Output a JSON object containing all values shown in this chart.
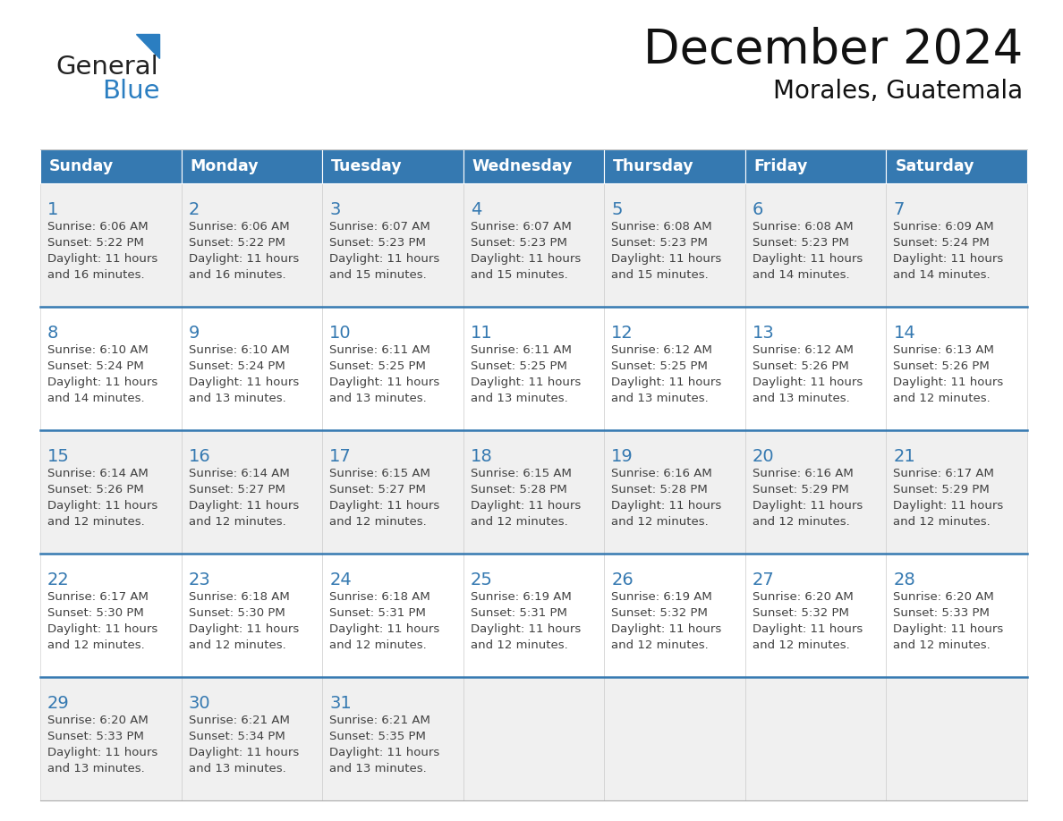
{
  "title": "December 2024",
  "subtitle": "Morales, Guatemala",
  "header_color": "#3579B1",
  "header_text_color": "#FFFFFF",
  "day_names": [
    "Sunday",
    "Monday",
    "Tuesday",
    "Wednesday",
    "Thursday",
    "Friday",
    "Saturday"
  ],
  "bg_color": "#FFFFFF",
  "cell_bg_even": "#F0F0F0",
  "cell_bg_odd": "#FFFFFF",
  "row_line_color": "#3579B1",
  "date_color": "#3579B1",
  "text_color": "#404040",
  "calendar": [
    [
      {
        "day": 1,
        "sunrise": "6:06 AM",
        "sunset": "5:22 PM",
        "daylight": "11 hours and 16 minutes"
      },
      {
        "day": 2,
        "sunrise": "6:06 AM",
        "sunset": "5:22 PM",
        "daylight": "11 hours and 16 minutes"
      },
      {
        "day": 3,
        "sunrise": "6:07 AM",
        "sunset": "5:23 PM",
        "daylight": "11 hours and 15 minutes"
      },
      {
        "day": 4,
        "sunrise": "6:07 AM",
        "sunset": "5:23 PM",
        "daylight": "11 hours and 15 minutes"
      },
      {
        "day": 5,
        "sunrise": "6:08 AM",
        "sunset": "5:23 PM",
        "daylight": "11 hours and 15 minutes"
      },
      {
        "day": 6,
        "sunrise": "6:08 AM",
        "sunset": "5:23 PM",
        "daylight": "11 hours and 14 minutes"
      },
      {
        "day": 7,
        "sunrise": "6:09 AM",
        "sunset": "5:24 PM",
        "daylight": "11 hours and 14 minutes"
      }
    ],
    [
      {
        "day": 8,
        "sunrise": "6:10 AM",
        "sunset": "5:24 PM",
        "daylight": "11 hours and 14 minutes"
      },
      {
        "day": 9,
        "sunrise": "6:10 AM",
        "sunset": "5:24 PM",
        "daylight": "11 hours and 13 minutes"
      },
      {
        "day": 10,
        "sunrise": "6:11 AM",
        "sunset": "5:25 PM",
        "daylight": "11 hours and 13 minutes"
      },
      {
        "day": 11,
        "sunrise": "6:11 AM",
        "sunset": "5:25 PM",
        "daylight": "11 hours and 13 minutes"
      },
      {
        "day": 12,
        "sunrise": "6:12 AM",
        "sunset": "5:25 PM",
        "daylight": "11 hours and 13 minutes"
      },
      {
        "day": 13,
        "sunrise": "6:12 AM",
        "sunset": "5:26 PM",
        "daylight": "11 hours and 13 minutes"
      },
      {
        "day": 14,
        "sunrise": "6:13 AM",
        "sunset": "5:26 PM",
        "daylight": "11 hours and 12 minutes"
      }
    ],
    [
      {
        "day": 15,
        "sunrise": "6:14 AM",
        "sunset": "5:26 PM",
        "daylight": "11 hours and 12 minutes"
      },
      {
        "day": 16,
        "sunrise": "6:14 AM",
        "sunset": "5:27 PM",
        "daylight": "11 hours and 12 minutes"
      },
      {
        "day": 17,
        "sunrise": "6:15 AM",
        "sunset": "5:27 PM",
        "daylight": "11 hours and 12 minutes"
      },
      {
        "day": 18,
        "sunrise": "6:15 AM",
        "sunset": "5:28 PM",
        "daylight": "11 hours and 12 minutes"
      },
      {
        "day": 19,
        "sunrise": "6:16 AM",
        "sunset": "5:28 PM",
        "daylight": "11 hours and 12 minutes"
      },
      {
        "day": 20,
        "sunrise": "6:16 AM",
        "sunset": "5:29 PM",
        "daylight": "11 hours and 12 minutes"
      },
      {
        "day": 21,
        "sunrise": "6:17 AM",
        "sunset": "5:29 PM",
        "daylight": "11 hours and 12 minutes"
      }
    ],
    [
      {
        "day": 22,
        "sunrise": "6:17 AM",
        "sunset": "5:30 PM",
        "daylight": "11 hours and 12 minutes"
      },
      {
        "day": 23,
        "sunrise": "6:18 AM",
        "sunset": "5:30 PM",
        "daylight": "11 hours and 12 minutes"
      },
      {
        "day": 24,
        "sunrise": "6:18 AM",
        "sunset": "5:31 PM",
        "daylight": "11 hours and 12 minutes"
      },
      {
        "day": 25,
        "sunrise": "6:19 AM",
        "sunset": "5:31 PM",
        "daylight": "11 hours and 12 minutes"
      },
      {
        "day": 26,
        "sunrise": "6:19 AM",
        "sunset": "5:32 PM",
        "daylight": "11 hours and 12 minutes"
      },
      {
        "day": 27,
        "sunrise": "6:20 AM",
        "sunset": "5:32 PM",
        "daylight": "11 hours and 12 minutes"
      },
      {
        "day": 28,
        "sunrise": "6:20 AM",
        "sunset": "5:33 PM",
        "daylight": "11 hours and 12 minutes"
      }
    ],
    [
      {
        "day": 29,
        "sunrise": "6:20 AM",
        "sunset": "5:33 PM",
        "daylight": "11 hours and 13 minutes"
      },
      {
        "day": 30,
        "sunrise": "6:21 AM",
        "sunset": "5:34 PM",
        "daylight": "11 hours and 13 minutes"
      },
      {
        "day": 31,
        "sunrise": "6:21 AM",
        "sunset": "5:35 PM",
        "daylight": "11 hours and 13 minutes"
      },
      null,
      null,
      null,
      null
    ]
  ],
  "logo_text1": "General",
  "logo_text2": "Blue",
  "logo_color1": "#222222",
  "logo_color2": "#2B7EC1",
  "logo_triangle_color": "#2B7EC1"
}
